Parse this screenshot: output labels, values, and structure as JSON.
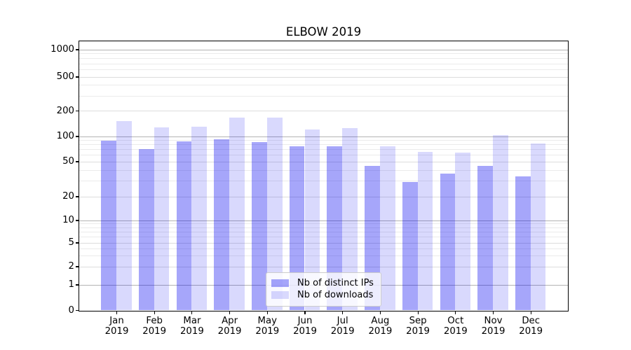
{
  "chart_data": {
    "type": "bar",
    "title": "ELBOW 2019",
    "categories": [
      "Jan 2019",
      "Feb 2019",
      "Mar 2019",
      "Apr 2019",
      "May 2019",
      "Jun 2019",
      "Jul 2019",
      "Aug 2019",
      "Sep 2019",
      "Oct 2019",
      "Nov 2019",
      "Dec 2019"
    ],
    "series": [
      {
        "name": "Nb of distinct IPs",
        "color": "rgba(0,0,240,0.35)",
        "values": [
          89,
          70,
          87,
          92,
          85,
          75,
          75,
          44,
          29,
          36,
          44,
          34
        ]
      },
      {
        "name": "Nb of downloads",
        "color": "rgba(0,0,240,0.15)",
        "values": [
          150,
          127,
          130,
          164,
          164,
          119,
          125,
          75,
          65,
          64,
          103,
          81
        ]
      }
    ],
    "xlabel": "",
    "ylabel": "",
    "yscale": "symlog",
    "yticks": [
      0,
      1,
      2,
      5,
      10,
      20,
      50,
      100,
      200,
      500,
      1000
    ],
    "ytick_labels": [
      "0",
      "1",
      "2",
      "5",
      "10",
      "20",
      "50",
      "100",
      "200",
      "500",
      "1000"
    ],
    "ylim": [
      0,
      1250
    ],
    "grid": true,
    "legend_position": "lower center"
  },
  "colors": {
    "bar_dark": "rgba(0,0,240,0.35)",
    "bar_light": "rgba(0,0,240,0.15)",
    "grid_major": "#b3b3b3",
    "grid_mid": "#dcdcdc",
    "grid_minor": "#ebebeb",
    "spine": "#000000",
    "legend_border": "#cccccc"
  }
}
